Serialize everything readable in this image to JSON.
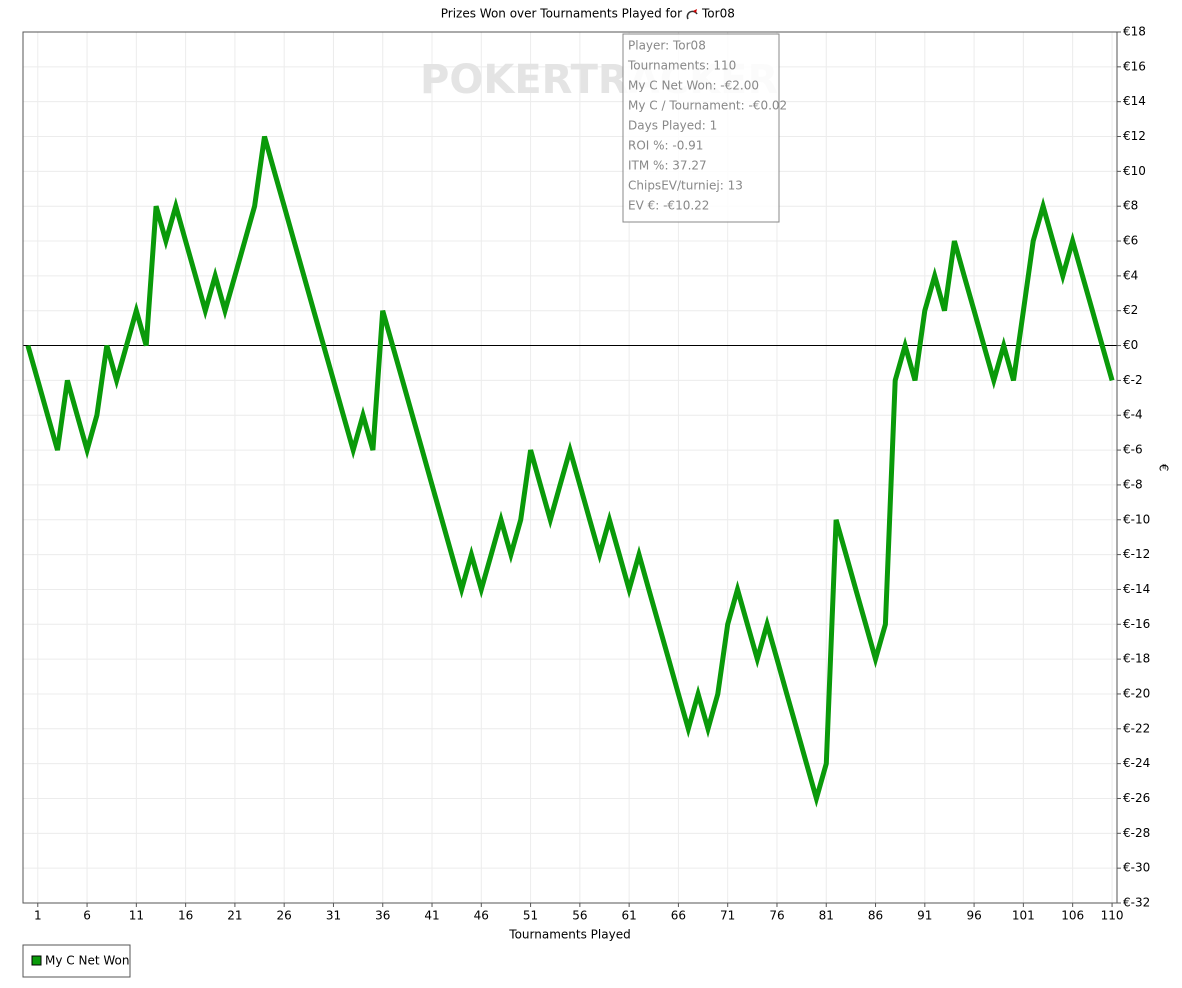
{
  "chart_data": {
    "type": "line",
    "title": "Prizes Won over Tournaments Played for",
    "title_player": "Tor08",
    "watermark": "POKERTRACKER",
    "xlabel": "Tournaments Played",
    "ylabel": "€",
    "x": [
      0,
      1,
      2,
      3,
      4,
      5,
      6,
      7,
      8,
      9,
      10,
      11,
      12,
      13,
      14,
      15,
      16,
      17,
      18,
      19,
      20,
      21,
      22,
      23,
      24,
      25,
      26,
      27,
      28,
      29,
      30,
      31,
      32,
      33,
      34,
      35,
      36,
      37,
      38,
      39,
      40,
      41,
      42,
      43,
      44,
      45,
      46,
      47,
      48,
      49,
      50,
      51,
      52,
      53,
      54,
      55,
      56,
      57,
      58,
      59,
      60,
      61,
      62,
      63,
      64,
      65,
      66,
      67,
      68,
      69,
      70,
      71,
      72,
      73,
      74,
      75,
      76,
      77,
      78,
      79,
      80,
      81,
      82,
      83,
      84,
      85,
      86,
      87,
      88,
      89,
      90,
      91,
      92,
      93,
      94,
      95,
      96,
      97,
      98,
      99,
      100,
      101,
      102,
      103,
      104,
      105,
      106,
      107,
      108,
      109,
      110
    ],
    "series": [
      {
        "name": "My C Net Won",
        "color": "#0a9a0a",
        "values": [
          0,
          -2,
          -4,
          -6,
          -2,
          -4,
          -6,
          -4,
          0,
          -2,
          0,
          2,
          0,
          8,
          6,
          8,
          6,
          4,
          2,
          4,
          2,
          4,
          6,
          8,
          12,
          10,
          8,
          6,
          4,
          2,
          0,
          -2,
          -4,
          -6,
          -4,
          -6,
          2,
          0,
          -2,
          -4,
          -6,
          -8,
          -10,
          -12,
          -14,
          -12,
          -14,
          -12,
          -10,
          -12,
          -10,
          -6,
          -8,
          -10,
          -8,
          -6,
          -8,
          -10,
          -12,
          -10,
          -12,
          -14,
          -12,
          -14,
          -16,
          -18,
          -20,
          -22,
          -20,
          -22,
          -20,
          -16,
          -14,
          -16,
          -18,
          -16,
          -18,
          -20,
          -22,
          -24,
          -26,
          -24,
          -10,
          -12,
          -14,
          -16,
          -18,
          -16,
          -2,
          0,
          -2,
          2,
          4,
          2,
          6,
          4,
          2,
          0,
          -2,
          0,
          -2,
          2,
          6,
          8,
          6,
          4,
          6,
          4,
          2,
          0,
          -2
        ]
      }
    ],
    "xlim": [
      -0.5,
      110.5
    ],
    "xticks": [
      1,
      6,
      11,
      16,
      21,
      26,
      31,
      36,
      41,
      46,
      51,
      56,
      61,
      66,
      71,
      76,
      81,
      86,
      91,
      96,
      101,
      106,
      110
    ],
    "ylim": [
      -32,
      18
    ],
    "yticks": [
      {
        "value": 18,
        "label": "€18"
      },
      {
        "value": 16,
        "label": "€16"
      },
      {
        "value": 14,
        "label": "€14"
      },
      {
        "value": 12,
        "label": "€12"
      },
      {
        "value": 10,
        "label": "€10"
      },
      {
        "value": 8,
        "label": "€8"
      },
      {
        "value": 6,
        "label": "€6"
      },
      {
        "value": 4,
        "label": "€4"
      },
      {
        "value": 2,
        "label": "€2"
      },
      {
        "value": 0,
        "label": "€0"
      },
      {
        "value": -2,
        "label": "€-2"
      },
      {
        "value": -4,
        "label": "€-4"
      },
      {
        "value": -6,
        "label": "€-6"
      },
      {
        "value": -8,
        "label": "€-8"
      },
      {
        "value": -10,
        "label": "€-10"
      },
      {
        "value": -12,
        "label": "€-12"
      },
      {
        "value": -14,
        "label": "€-14"
      },
      {
        "value": -16,
        "label": "€-16"
      },
      {
        "value": -18,
        "label": "€-18"
      },
      {
        "value": -20,
        "label": "€-20"
      },
      {
        "value": -22,
        "label": "€-22"
      },
      {
        "value": -24,
        "label": "€-24"
      },
      {
        "value": -26,
        "label": "€-26"
      },
      {
        "value": -28,
        "label": "€-28"
      },
      {
        "value": -30,
        "label": "€-30"
      },
      {
        "value": -32,
        "label": "€-32"
      }
    ],
    "grid": true,
    "legend": "bottom-left",
    "tooltip": [
      "Player: Tor08",
      "Tournaments: 110",
      "My C Net Won: -€2.00",
      "My C / Tournament: -€0.02",
      "Days Played: 1",
      "ROI %: -0.91",
      "ITM %: 37.27",
      "ChipsEV/turniej: 13",
      "EV €: -€10.22"
    ]
  }
}
